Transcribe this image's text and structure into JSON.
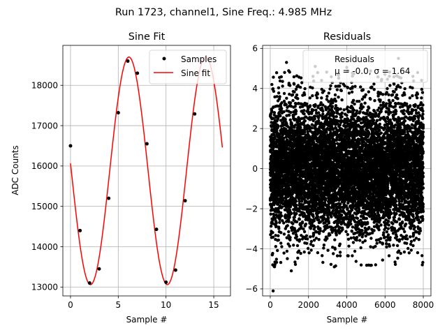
{
  "figure": {
    "suptitle": "Run 1723, channel1, Sine Freq.: 4.985 MHz"
  },
  "chart_data": [
    {
      "type": "line",
      "title": "Sine Fit",
      "xlabel": "Sample #",
      "ylabel": "ADC Counts",
      "xlim": [
        -0.8,
        16.75
      ],
      "ylim": [
        12780,
        18990
      ],
      "xticks": [
        0,
        5,
        10,
        15
      ],
      "xtick_labels": [
        "0",
        "5",
        "10",
        "15"
      ],
      "yticks": [
        13000,
        14000,
        15000,
        16000,
        17000,
        18000
      ],
      "ytick_labels": [
        "13000",
        "14000",
        "15000",
        "16000",
        "17000",
        "18000"
      ],
      "grid": true,
      "legend": {
        "location": "upper right",
        "entries": [
          "Samples",
          "Sine fit"
        ]
      },
      "series": [
        {
          "name": "Samples",
          "style": "scatter",
          "color": "#000000",
          "x": [
            0,
            1,
            2,
            3,
            4,
            5,
            6,
            7,
            8,
            9,
            10,
            11,
            12,
            13
          ],
          "y": [
            16500,
            14400,
            13100,
            13450,
            15200,
            17320,
            18600,
            18300,
            16550,
            14430,
            13120,
            13420,
            15140,
            17290
          ]
        },
        {
          "name": "Sine fit",
          "style": "line",
          "color": "#ff0000",
          "model": {
            "offset": 15880,
            "amplitude": 2820,
            "period": 8.04,
            "phase_deg": 176.2,
            "x_start": 0,
            "x_end": 15.9
          }
        }
      ]
    },
    {
      "type": "scatter",
      "title": "Residuals",
      "xlabel": "Sample #",
      "ylabel": "",
      "xlim": [
        -400,
        8400
      ],
      "ylim": [
        -6.35,
        6.15
      ],
      "xticks": [
        0,
        2000,
        4000,
        6000,
        8000
      ],
      "xtick_labels": [
        "0",
        "2000",
        "4000",
        "6000",
        "8000"
      ],
      "yticks": [
        -6,
        -4,
        -2,
        0,
        2,
        4,
        6
      ],
      "ytick_labels": [
        "−6",
        "−4",
        "−2",
        "0",
        "2",
        "4",
        "6"
      ],
      "grid": true,
      "legend": {
        "location": "upper right",
        "entries": [
          "Residuals"
        ]
      },
      "stats_annotation": {
        "mean_label": "μ = -0.0, ",
        "std_label": "σ = 1.64"
      },
      "n_samples": 8000,
      "mean": 0.0,
      "std": 1.64,
      "color": "#000000",
      "notable_points": [
        {
          "x": 150,
          "y": -6.1
        },
        {
          "x": 850,
          "y": 5.3
        },
        {
          "x": 6700,
          "y": 5.5
        },
        {
          "x": 2350,
          "y": 5.1
        },
        {
          "x": 4000,
          "y": 5.05
        },
        {
          "x": 750,
          "y": 4.8
        },
        {
          "x": 1100,
          "y": -5.1
        },
        {
          "x": 3350,
          "y": -4.9
        },
        {
          "x": 7950,
          "y": -4.8
        }
      ]
    }
  ]
}
